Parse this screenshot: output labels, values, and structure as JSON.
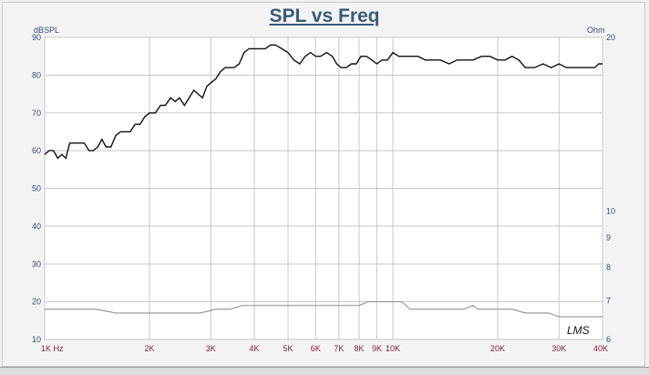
{
  "chart_data": {
    "type": "line",
    "title": "SPL vs Freq",
    "ylabel_left": "dBSPL",
    "ylabel_right": "Ohm",
    "x_scale": "log",
    "xlim": [
      1000,
      40000
    ],
    "ylim": [
      10,
      90
    ],
    "y2_ticks": [
      {
        "label": "20",
        "value": 20
      },
      {
        "label": "10",
        "value": 10
      },
      {
        "label": "9",
        "value": 9
      },
      {
        "label": "8",
        "value": 8
      },
      {
        "label": "7",
        "value": 7
      },
      {
        "label": "6",
        "value": 6
      }
    ],
    "x_ticks": [
      {
        "label": "1K  Hz",
        "value": 1000
      },
      {
        "label": "2K",
        "value": 2000
      },
      {
        "label": "3K",
        "value": 3000
      },
      {
        "label": "4K",
        "value": 4000
      },
      {
        "label": "5K",
        "value": 5000
      },
      {
        "label": "6K",
        "value": 6000
      },
      {
        "label": "7K",
        "value": 7000
      },
      {
        "label": "8K",
        "value": 8000
      },
      {
        "label": "9K",
        "value": 9000
      },
      {
        "label": "10K",
        "value": 10000
      },
      {
        "label": "20K",
        "value": 20000
      },
      {
        "label": "30K",
        "value": 30000
      },
      {
        "label": "40K",
        "value": 40000
      }
    ],
    "y_ticks": [
      10,
      20,
      30,
      40,
      50,
      60,
      70,
      80,
      90
    ],
    "grid": true,
    "series": [
      {
        "color": "#111111",
        "points": [
          [
            1000,
            59
          ],
          [
            1030,
            60
          ],
          [
            1060,
            60
          ],
          [
            1090,
            58
          ],
          [
            1120,
            59
          ],
          [
            1150,
            58
          ],
          [
            1180,
            62
          ],
          [
            1220,
            62
          ],
          [
            1260,
            62
          ],
          [
            1300,
            62
          ],
          [
            1340,
            60
          ],
          [
            1380,
            60
          ],
          [
            1420,
            61
          ],
          [
            1460,
            63
          ],
          [
            1500,
            61
          ],
          [
            1550,
            61
          ],
          [
            1600,
            64
          ],
          [
            1650,
            65
          ],
          [
            1700,
            65
          ],
          [
            1760,
            65
          ],
          [
            1820,
            67
          ],
          [
            1880,
            67
          ],
          [
            1940,
            69
          ],
          [
            2000,
            70
          ],
          [
            2080,
            70
          ],
          [
            2150,
            72
          ],
          [
            2220,
            72
          ],
          [
            2300,
            74
          ],
          [
            2370,
            73
          ],
          [
            2440,
            74
          ],
          [
            2520,
            72
          ],
          [
            2600,
            74
          ],
          [
            2680,
            76
          ],
          [
            2760,
            75
          ],
          [
            2840,
            74
          ],
          [
            2920,
            77
          ],
          [
            3000,
            78
          ],
          [
            3100,
            79
          ],
          [
            3200,
            81
          ],
          [
            3300,
            82
          ],
          [
            3400,
            82
          ],
          [
            3500,
            82
          ],
          [
            3620,
            83
          ],
          [
            3740,
            86
          ],
          [
            3860,
            87
          ],
          [
            4000,
            87
          ],
          [
            4150,
            87
          ],
          [
            4300,
            87
          ],
          [
            4450,
            88
          ],
          [
            4600,
            88
          ],
          [
            4800,
            87
          ],
          [
            5000,
            86
          ],
          [
            5200,
            84
          ],
          [
            5400,
            83
          ],
          [
            5600,
            85
          ],
          [
            5800,
            86
          ],
          [
            6000,
            85
          ],
          [
            6200,
            85
          ],
          [
            6450,
            86
          ],
          [
            6700,
            85
          ],
          [
            6900,
            83
          ],
          [
            7100,
            82
          ],
          [
            7350,
            82
          ],
          [
            7600,
            83
          ],
          [
            7850,
            83
          ],
          [
            8100,
            85
          ],
          [
            8400,
            85
          ],
          [
            8700,
            84
          ],
          [
            9000,
            83
          ],
          [
            9300,
            84
          ],
          [
            9650,
            84
          ],
          [
            10000,
            86
          ],
          [
            10400,
            85
          ],
          [
            10800,
            85
          ],
          [
            11300,
            85
          ],
          [
            11800,
            85
          ],
          [
            12400,
            84
          ],
          [
            13000,
            84
          ],
          [
            13700,
            84
          ],
          [
            14500,
            83
          ],
          [
            15300,
            84
          ],
          [
            16200,
            84
          ],
          [
            17000,
            84
          ],
          [
            18000,
            85
          ],
          [
            19000,
            85
          ],
          [
            20000,
            84
          ],
          [
            21000,
            84
          ],
          [
            22000,
            85
          ],
          [
            23000,
            84
          ],
          [
            24000,
            82
          ],
          [
            25500,
            82
          ],
          [
            27000,
            83
          ],
          [
            28500,
            82
          ],
          [
            30000,
            83
          ],
          [
            31500,
            82
          ],
          [
            33000,
            82
          ],
          [
            35000,
            82
          ],
          [
            36500,
            82
          ],
          [
            38000,
            82
          ],
          [
            39000,
            83
          ],
          [
            40000,
            83
          ]
        ]
      },
      {
        "color": "#9a9a9a",
        "points": [
          [
            1000,
            18
          ],
          [
            1200,
            18
          ],
          [
            1400,
            18
          ],
          [
            1600,
            17
          ],
          [
            1800,
            17
          ],
          [
            2000,
            17
          ],
          [
            2200,
            17
          ],
          [
            2500,
            17
          ],
          [
            2800,
            17
          ],
          [
            3100,
            18
          ],
          [
            3400,
            18
          ],
          [
            3700,
            19
          ],
          [
            4000,
            19
          ],
          [
            4400,
            19
          ],
          [
            4800,
            19
          ],
          [
            5200,
            19
          ],
          [
            5600,
            19
          ],
          [
            6000,
            19
          ],
          [
            6500,
            19
          ],
          [
            7000,
            19
          ],
          [
            7500,
            19
          ],
          [
            8000,
            19
          ],
          [
            8500,
            20
          ],
          [
            9000,
            20
          ],
          [
            9500,
            20
          ],
          [
            10000,
            20
          ],
          [
            10600,
            20
          ],
          [
            11200,
            18
          ],
          [
            12000,
            18
          ],
          [
            13000,
            18
          ],
          [
            14000,
            18
          ],
          [
            15000,
            18
          ],
          [
            16000,
            18
          ],
          [
            17000,
            19
          ],
          [
            17500,
            18
          ],
          [
            18500,
            18
          ],
          [
            20000,
            18
          ],
          [
            22000,
            18
          ],
          [
            24000,
            17
          ],
          [
            26000,
            17
          ],
          [
            28000,
            17
          ],
          [
            30000,
            16
          ],
          [
            32000,
            16
          ],
          [
            34000,
            16
          ],
          [
            36000,
            16
          ],
          [
            38000,
            16
          ],
          [
            40000,
            16
          ]
        ]
      }
    ],
    "annotation": "LMS"
  }
}
